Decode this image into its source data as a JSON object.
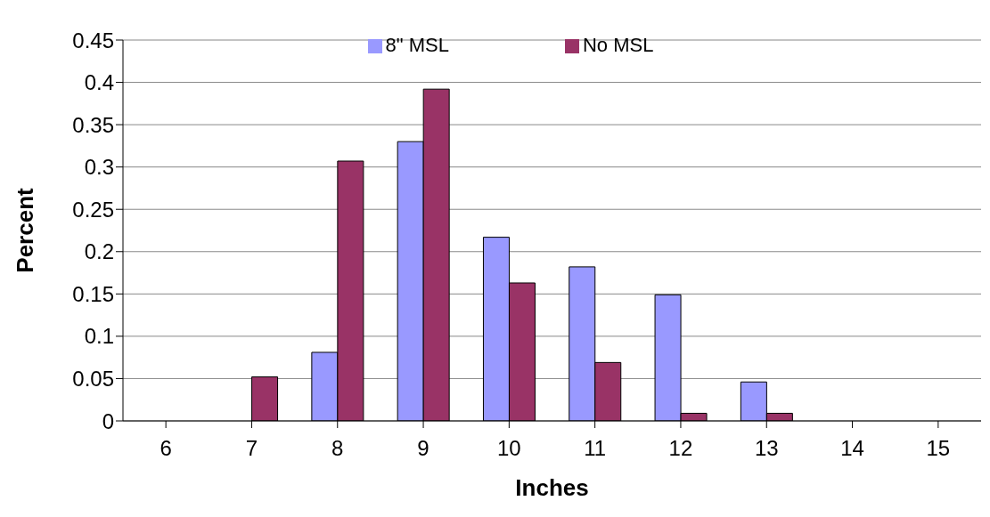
{
  "chart_data": {
    "type": "bar",
    "xlabel": "Inches",
    "ylabel": "Percent",
    "categories": [
      "6",
      "7",
      "8",
      "9",
      "10",
      "11",
      "12",
      "13",
      "14",
      "15"
    ],
    "series": [
      {
        "name": "8\" MSL",
        "color": "#9999ff",
        "values": [
          0,
          0,
          0.081,
          0.33,
          0.217,
          0.182,
          0.149,
          0.046,
          0,
          0
        ]
      },
      {
        "name": "No MSL",
        "color": "#993366",
        "values": [
          0,
          0.052,
          0.307,
          0.392,
          0.163,
          0.069,
          0.009,
          0.009,
          0,
          0
        ]
      }
    ],
    "ylim": [
      0,
      0.45
    ],
    "yticks": [
      0,
      0.05,
      0.1,
      0.15,
      0.2,
      0.25,
      0.3,
      0.35,
      0.4,
      0.45
    ],
    "grid": "y",
    "legend": "top"
  }
}
